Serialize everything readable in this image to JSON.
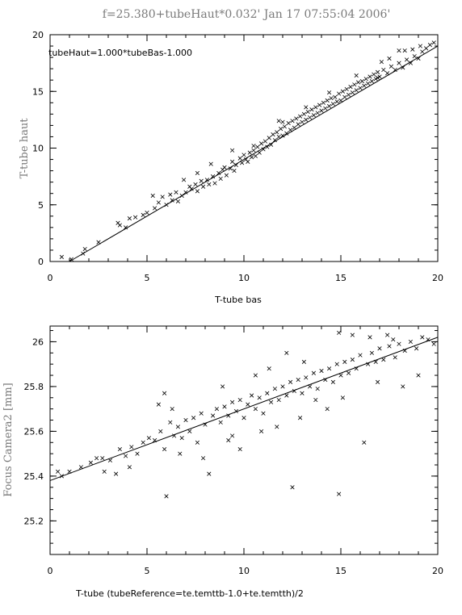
{
  "title": "f=25.380+tubeHaut*0.032'   Jan 17 07:55:04 2006'",
  "chart_data": [
    {
      "type": "scatter",
      "xlabel": "T-tube bas",
      "ylabel": "T-tube haut",
      "annotation": "tubeHaut=1.000*tubeBas-1.000",
      "xlim": [
        0,
        20
      ],
      "ylim": [
        0,
        20
      ],
      "xticks": [
        "0",
        "5",
        "10",
        "15",
        "20"
      ],
      "yticks": [
        "0",
        "5",
        "10",
        "15",
        "20"
      ],
      "fit_line": {
        "slope": 1.0,
        "intercept": -1.0
      },
      "points": [
        [
          0.6,
          0.4
        ],
        [
          1.1,
          0.2
        ],
        [
          1.7,
          0.7
        ],
        [
          1.8,
          1.1
        ],
        [
          2.5,
          1.7
        ],
        [
          3.5,
          3.4
        ],
        [
          3.6,
          3.2
        ],
        [
          3.9,
          3.0
        ],
        [
          4.1,
          3.8
        ],
        [
          4.4,
          3.9
        ],
        [
          4.8,
          4.1
        ],
        [
          5.0,
          4.3
        ],
        [
          5.4,
          4.7
        ],
        [
          5.6,
          5.2
        ],
        [
          5.8,
          5.7
        ],
        [
          6.0,
          5.0
        ],
        [
          6.2,
          5.9
        ],
        [
          6.3,
          5.4
        ],
        [
          6.5,
          6.1
        ],
        [
          6.6,
          5.3
        ],
        [
          6.8,
          5.8
        ],
        [
          7.0,
          6.1
        ],
        [
          7.2,
          6.6
        ],
        [
          7.3,
          6.4
        ],
        [
          7.5,
          6.8
        ],
        [
          7.6,
          6.2
        ],
        [
          7.8,
          7.1
        ],
        [
          7.9,
          6.6
        ],
        [
          8.1,
          7.2
        ],
        [
          8.2,
          6.8
        ],
        [
          8.4,
          7.5
        ],
        [
          8.5,
          6.9
        ],
        [
          8.7,
          7.8
        ],
        [
          8.8,
          7.3
        ],
        [
          8.9,
          8.1
        ],
        [
          9.0,
          8.3
        ],
        [
          9.1,
          7.6
        ],
        [
          9.3,
          8.2
        ],
        [
          9.4,
          8.8
        ],
        [
          9.5,
          8.0
        ],
        [
          9.6,
          8.5
        ],
        [
          9.8,
          9.1
        ],
        [
          9.9,
          8.7
        ],
        [
          10.0,
          9.4
        ],
        [
          10.1,
          9.0
        ],
        [
          10.2,
          8.8
        ],
        [
          10.3,
          9.6
        ],
        [
          10.4,
          9.2
        ],
        [
          10.5,
          9.8
        ],
        [
          10.6,
          9.3
        ],
        [
          10.7,
          10.1
        ],
        [
          10.8,
          9.6
        ],
        [
          10.9,
          10.4
        ],
        [
          11.0,
          9.9
        ],
        [
          11.1,
          10.6
        ],
        [
          11.2,
          10.1
        ],
        [
          11.3,
          10.9
        ],
        [
          11.4,
          10.3
        ],
        [
          11.5,
          11.2
        ],
        [
          11.6,
          10.7
        ],
        [
          11.7,
          11.4
        ],
        [
          11.8,
          11.0
        ],
        [
          11.9,
          11.7
        ],
        [
          12.0,
          11.1
        ],
        [
          12.1,
          11.9
        ],
        [
          12.2,
          11.3
        ],
        [
          12.3,
          12.2
        ],
        [
          12.4,
          11.6
        ],
        [
          12.5,
          12.4
        ],
        [
          12.6,
          11.8
        ],
        [
          12.7,
          12.6
        ],
        [
          12.8,
          12.1
        ],
        [
          12.9,
          12.8
        ],
        [
          13.0,
          12.3
        ],
        [
          13.1,
          13.0
        ],
        [
          13.2,
          12.5
        ],
        [
          13.3,
          13.2
        ],
        [
          13.4,
          12.7
        ],
        [
          13.5,
          13.4
        ],
        [
          13.6,
          12.9
        ],
        [
          13.7,
          13.6
        ],
        [
          13.8,
          13.1
        ],
        [
          13.9,
          13.8
        ],
        [
          14.0,
          13.3
        ],
        [
          14.1,
          14.0
        ],
        [
          14.2,
          13.5
        ],
        [
          14.3,
          14.2
        ],
        [
          14.4,
          13.7
        ],
        [
          14.5,
          14.4
        ],
        [
          14.6,
          13.9
        ],
        [
          14.7,
          14.5
        ],
        [
          14.8,
          14.1
        ],
        [
          14.9,
          14.8
        ],
        [
          15.0,
          14.2
        ],
        [
          15.1,
          15.0
        ],
        [
          15.2,
          14.5
        ],
        [
          15.3,
          15.2
        ],
        [
          15.4,
          14.7
        ],
        [
          15.5,
          15.4
        ],
        [
          15.6,
          14.9
        ],
        [
          15.7,
          15.6
        ],
        [
          15.8,
          15.1
        ],
        [
          15.9,
          15.8
        ],
        [
          16.0,
          15.3
        ],
        [
          16.1,
          15.9
        ],
        [
          16.2,
          15.5
        ],
        [
          16.3,
          16.1
        ],
        [
          16.4,
          15.7
        ],
        [
          16.5,
          16.3
        ],
        [
          16.6,
          15.9
        ],
        [
          16.7,
          16.5
        ],
        [
          16.8,
          16.1
        ],
        [
          16.9,
          16.7
        ],
        [
          17.0,
          16.3
        ],
        [
          17.2,
          16.9
        ],
        [
          17.4,
          16.6
        ],
        [
          17.6,
          17.2
        ],
        [
          17.8,
          16.9
        ],
        [
          18.0,
          17.5
        ],
        [
          18.2,
          17.1
        ],
        [
          18.4,
          17.8
        ],
        [
          18.6,
          17.5
        ],
        [
          18.8,
          18.1
        ],
        [
          19.0,
          17.9
        ],
        [
          19.2,
          18.5
        ],
        [
          19.4,
          18.8
        ],
        [
          19.6,
          19.1
        ],
        [
          19.8,
          19.3
        ],
        [
          18.7,
          18.7
        ],
        [
          18.0,
          18.6
        ],
        [
          17.5,
          17.9
        ],
        [
          16.9,
          16.2
        ],
        [
          9.4,
          9.8
        ],
        [
          6.9,
          7.2
        ],
        [
          5.3,
          5.8
        ],
        [
          12.0,
          12.3
        ],
        [
          14.4,
          14.9
        ],
        [
          13.2,
          13.6
        ],
        [
          10.5,
          10.2
        ],
        [
          11.8,
          12.4
        ],
        [
          15.8,
          16.4
        ],
        [
          17.1,
          17.6
        ],
        [
          8.3,
          8.6
        ],
        [
          7.6,
          7.8
        ],
        [
          19.1,
          19.0
        ],
        [
          18.3,
          18.6
        ]
      ]
    },
    {
      "type": "scatter",
      "xlabel": "T-tube (tubeReference=te.temttb-1.0+te.temtth)/2",
      "ylabel": "Focus Camera2 [mm]",
      "xlim": [
        0,
        20
      ],
      "ylim": [
        25.05,
        26.07
      ],
      "xticks": [
        "0",
        "5",
        "10",
        "15",
        "20"
      ],
      "yticks": [
        "25.2",
        "25.4",
        "25.6",
        "25.8",
        "26"
      ],
      "fit_line": {
        "slope": 0.032,
        "intercept": 25.38
      },
      "points": [
        [
          0.4,
          25.42
        ],
        [
          0.6,
          25.4
        ],
        [
          1.0,
          25.42
        ],
        [
          1.6,
          25.44
        ],
        [
          2.1,
          25.46
        ],
        [
          2.4,
          25.48
        ],
        [
          2.8,
          25.42
        ],
        [
          3.1,
          25.47
        ],
        [
          3.4,
          25.41
        ],
        [
          3.6,
          25.52
        ],
        [
          3.9,
          25.49
        ],
        [
          4.2,
          25.53
        ],
        [
          4.5,
          25.5
        ],
        [
          4.8,
          25.55
        ],
        [
          5.1,
          25.57
        ],
        [
          5.4,
          25.56
        ],
        [
          5.7,
          25.6
        ],
        [
          5.9,
          25.52
        ],
        [
          6.0,
          25.31
        ],
        [
          6.2,
          25.64
        ],
        [
          6.4,
          25.58
        ],
        [
          6.6,
          25.62
        ],
        [
          6.8,
          25.57
        ],
        [
          7.0,
          25.65
        ],
        [
          7.2,
          25.6
        ],
        [
          7.4,
          25.66
        ],
        [
          7.6,
          25.55
        ],
        [
          7.8,
          25.68
        ],
        [
          8.0,
          25.63
        ],
        [
          8.2,
          25.41
        ],
        [
          8.4,
          25.67
        ],
        [
          8.6,
          25.7
        ],
        [
          8.8,
          25.64
        ],
        [
          9.0,
          25.71
        ],
        [
          9.2,
          25.67
        ],
        [
          9.4,
          25.73
        ],
        [
          9.6,
          25.69
        ],
        [
          9.8,
          25.74
        ],
        [
          10.0,
          25.66
        ],
        [
          10.2,
          25.72
        ],
        [
          10.4,
          25.76
        ],
        [
          10.6,
          25.7
        ],
        [
          10.8,
          25.75
        ],
        [
          11.0,
          25.68
        ],
        [
          11.2,
          25.77
        ],
        [
          11.4,
          25.73
        ],
        [
          11.6,
          25.79
        ],
        [
          11.8,
          25.74
        ],
        [
          12.0,
          25.8
        ],
        [
          12.2,
          25.76
        ],
        [
          12.4,
          25.82
        ],
        [
          12.5,
          25.35
        ],
        [
          12.6,
          25.78
        ],
        [
          12.8,
          25.83
        ],
        [
          13.0,
          25.77
        ],
        [
          13.2,
          25.84
        ],
        [
          13.4,
          25.8
        ],
        [
          13.6,
          25.86
        ],
        [
          13.8,
          25.79
        ],
        [
          14.0,
          25.87
        ],
        [
          14.2,
          25.83
        ],
        [
          14.4,
          25.88
        ],
        [
          14.6,
          25.82
        ],
        [
          14.8,
          25.9
        ],
        [
          14.9,
          25.32
        ],
        [
          15.0,
          25.85
        ],
        [
          15.2,
          25.91
        ],
        [
          15.4,
          25.86
        ],
        [
          15.6,
          25.92
        ],
        [
          15.8,
          25.88
        ],
        [
          16.0,
          25.94
        ],
        [
          16.2,
          25.55
        ],
        [
          16.4,
          25.9
        ],
        [
          16.6,
          25.95
        ],
        [
          16.8,
          25.91
        ],
        [
          17.0,
          25.97
        ],
        [
          17.2,
          25.92
        ],
        [
          17.5,
          25.98
        ],
        [
          17.8,
          25.93
        ],
        [
          18.0,
          25.99
        ],
        [
          18.3,
          25.96
        ],
        [
          18.6,
          26.0
        ],
        [
          18.9,
          25.97
        ],
        [
          19.2,
          26.02
        ],
        [
          19.5,
          26.01
        ],
        [
          19.8,
          25.99
        ],
        [
          5.6,
          25.72
        ],
        [
          5.9,
          25.77
        ],
        [
          6.3,
          25.7
        ],
        [
          9.4,
          25.58
        ],
        [
          9.8,
          25.52
        ],
        [
          10.6,
          25.85
        ],
        [
          11.3,
          25.88
        ],
        [
          12.2,
          25.95
        ],
        [
          13.1,
          25.91
        ],
        [
          14.9,
          26.04
        ],
        [
          15.6,
          26.03
        ],
        [
          16.5,
          26.02
        ],
        [
          17.4,
          26.03
        ],
        [
          18.2,
          25.8
        ],
        [
          19.0,
          25.85
        ],
        [
          8.9,
          25.8
        ],
        [
          7.9,
          25.48
        ],
        [
          6.7,
          25.5
        ],
        [
          4.1,
          25.44
        ],
        [
          2.7,
          25.48
        ],
        [
          12.9,
          25.66
        ],
        [
          14.3,
          25.7
        ],
        [
          15.1,
          25.75
        ],
        [
          16.9,
          25.82
        ],
        [
          11.7,
          25.62
        ],
        [
          10.9,
          25.6
        ],
        [
          9.2,
          25.56
        ],
        [
          13.7,
          25.74
        ],
        [
          17.7,
          26.01
        ]
      ]
    }
  ]
}
